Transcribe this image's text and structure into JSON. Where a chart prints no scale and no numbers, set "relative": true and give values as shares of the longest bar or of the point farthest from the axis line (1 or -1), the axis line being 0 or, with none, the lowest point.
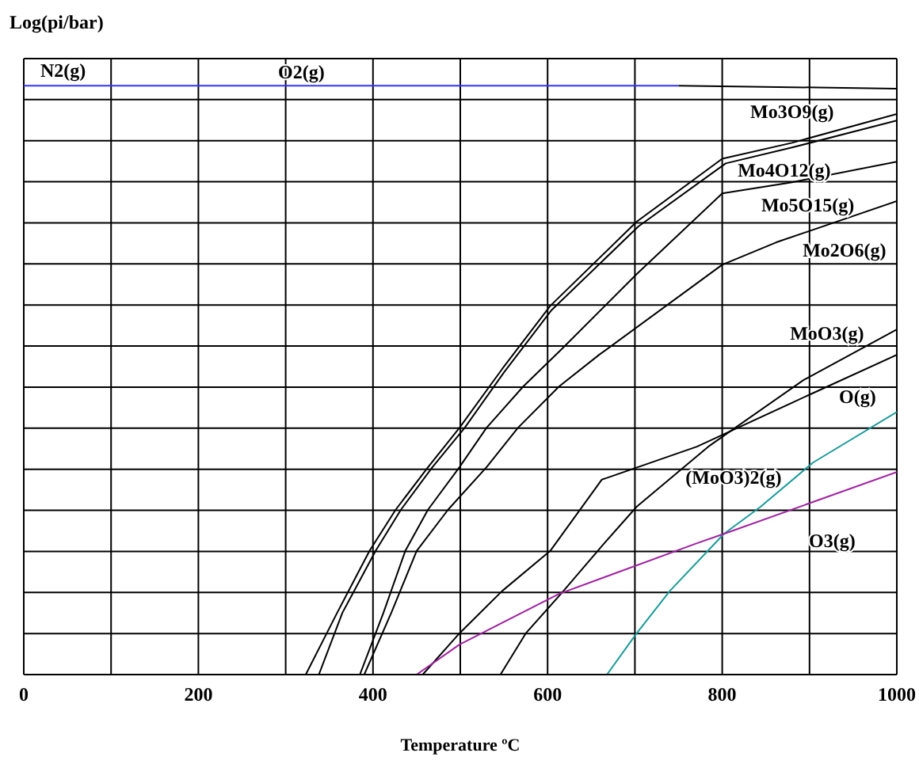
{
  "chart_data": {
    "type": "line",
    "relative": true,
    "ylabel": "Log(pi/bar)",
    "xlabel": "Temperature ºC",
    "xlim": [
      0,
      1000
    ],
    "xticks": [
      0,
      {
        "value": 100,
        "label": null
      },
      200,
      {
        "value": 300,
        "label": null
      },
      400,
      {
        "value": 500,
        "label": null
      },
      600,
      {
        "value": 700,
        "label": null
      },
      800,
      {
        "value": 900,
        "label": null
      },
      1000
    ],
    "grid": true,
    "series": [
      {
        "color": "#3333ff",
        "x": [
          0,
          750
        ],
        "values": [
          1,
          1
        ]
      },
      {
        "color": "#000000",
        "x": [
          750,
          1000
        ],
        "values": [
          1,
          0.995
        ]
      },
      {
        "color": "#000000",
        "x": [
          323,
          359,
          396,
          426,
          463,
          499,
          548,
          603,
          702,
          800,
          880,
          1000
        ],
        "values": [
          0,
          0.105,
          0.21,
          0.28,
          0.352,
          0.419,
          0.519,
          0.626,
          0.769,
          0.876,
          0.903,
          0.952
        ]
      },
      {
        "color": "#000000",
        "x": [
          338,
          365,
          403,
          432,
          468,
          505,
          550,
          604,
          704,
          804,
          880,
          1000
        ],
        "values": [
          0,
          0.105,
          0.21,
          0.28,
          0.352,
          0.419,
          0.513,
          0.618,
          0.761,
          0.868,
          0.895,
          0.941
        ]
      },
      {
        "color": "#000000",
        "x": [
          385,
          412,
          437,
          463,
          499,
          530,
          572,
          617,
          702,
          800,
          880,
          1000
        ],
        "values": [
          0,
          0.105,
          0.21,
          0.28,
          0.352,
          0.419,
          0.489,
          0.554,
          0.68,
          0.817,
          0.836,
          0.871
        ]
      },
      {
        "color": "#000000",
        "x": [
          390,
          421,
          450,
          486,
          530,
          566,
          613,
          659,
          800,
          862,
          1000
        ],
        "values": [
          0,
          0.105,
          0.21,
          0.28,
          0.352,
          0.419,
          0.489,
          0.543,
          0.696,
          0.734,
          0.804
        ]
      },
      {
        "color": "#000000",
        "x": [
          546,
          575,
          617,
          662,
          702,
          784,
          893,
          1000
        ],
        "values": [
          0,
          0.07,
          0.14,
          0.218,
          0.285,
          0.387,
          0.5,
          0.586
        ]
      },
      {
        "color": "#000000",
        "x": [
          457,
          499,
          548,
          603,
          662,
          771,
          904,
          1000
        ],
        "values": [
          0,
          0.07,
          0.142,
          0.21,
          0.331,
          0.387,
          0.478,
          0.543
        ]
      },
      {
        "color": "#1a9a9a",
        "x": [
          668,
          702,
          740,
          802,
          844,
          904,
          1000
        ],
        "values": [
          0,
          0.07,
          0.142,
          0.239,
          0.285,
          0.36,
          0.446
        ]
      },
      {
        "color": "#a020a0",
        "x": [
          450,
          499,
          613,
          771,
          802,
          1000
        ],
        "values": [
          0,
          0.051,
          0.137,
          0.223,
          0.239,
          0.344
        ]
      }
    ],
    "annotations": [
      "N2(g)",
      "O2(g)",
      "Mo3O9(g)",
      "Mo4O12(g)",
      "Mo5O15(g)",
      "Mo2O6(g)",
      "MoO3(g)",
      "O(g)",
      "(MoO3)2(g)",
      "O3(g)"
    ]
  }
}
